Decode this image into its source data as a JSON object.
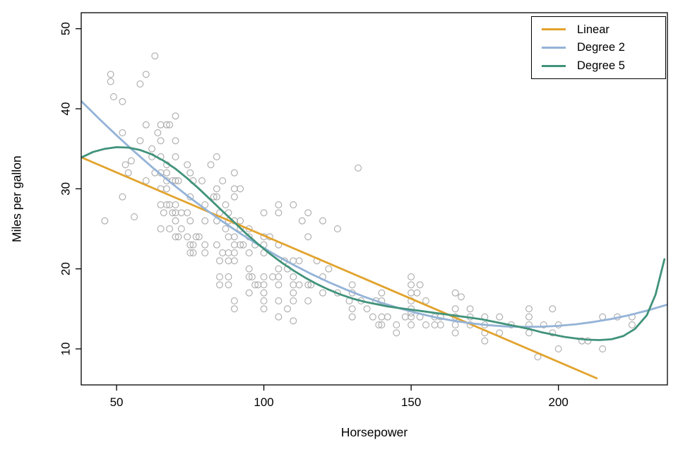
{
  "chart_data": {
    "type": "scatter",
    "title": "",
    "xlabel": "Horsepower",
    "ylabel": "Miles per gallon",
    "xlim": [
      38,
      237
    ],
    "ylim": [
      5.5,
      52
    ],
    "xticks": [
      50,
      100,
      150,
      200
    ],
    "yticks": [
      10,
      20,
      30,
      40,
      50
    ],
    "grid": "off",
    "point_color": "#ababab",
    "point_radius": 4.4,
    "points": [
      [
        46,
        26
      ],
      [
        48,
        43.4
      ],
      [
        48,
        44.3
      ],
      [
        49,
        41.5
      ],
      [
        52,
        40.9
      ],
      [
        52,
        37
      ],
      [
        52,
        29
      ],
      [
        53,
        33
      ],
      [
        54,
        32
      ],
      [
        55,
        33.5
      ],
      [
        56,
        26.5
      ],
      [
        58,
        43.1
      ],
      [
        58,
        36
      ],
      [
        60,
        44.3
      ],
      [
        60,
        38
      ],
      [
        60,
        31
      ],
      [
        62,
        35
      ],
      [
        62,
        34
      ],
      [
        63,
        32
      ],
      [
        63,
        46.6
      ],
      [
        64,
        37
      ],
      [
        65,
        38
      ],
      [
        65,
        36
      ],
      [
        65,
        34
      ],
      [
        65,
        32
      ],
      [
        65,
        30
      ],
      [
        65,
        28
      ],
      [
        65,
        25
      ],
      [
        66,
        27
      ],
      [
        67,
        38
      ],
      [
        67,
        33
      ],
      [
        67,
        32
      ],
      [
        67,
        31
      ],
      [
        67,
        30
      ],
      [
        67,
        28
      ],
      [
        68,
        38
      ],
      [
        68,
        28
      ],
      [
        68,
        25
      ],
      [
        69,
        31
      ],
      [
        69,
        27
      ],
      [
        70,
        39.1
      ],
      [
        70,
        36
      ],
      [
        70,
        34
      ],
      [
        70,
        31
      ],
      [
        70,
        28
      ],
      [
        70,
        27
      ],
      [
        70,
        26
      ],
      [
        70,
        24
      ],
      [
        71,
        31
      ],
      [
        71,
        24
      ],
      [
        72,
        27
      ],
      [
        72,
        25
      ],
      [
        74,
        33
      ],
      [
        74,
        27
      ],
      [
        74,
        24
      ],
      [
        75,
        32
      ],
      [
        75,
        29
      ],
      [
        75,
        26
      ],
      [
        75,
        23
      ],
      [
        75,
        22
      ],
      [
        76,
        31
      ],
      [
        76,
        23
      ],
      [
        76,
        22
      ],
      [
        77,
        24
      ],
      [
        78,
        24
      ],
      [
        79,
        31
      ],
      [
        80,
        28
      ],
      [
        80,
        26
      ],
      [
        80,
        23
      ],
      [
        80,
        22
      ],
      [
        82,
        33
      ],
      [
        83,
        29
      ],
      [
        84,
        34
      ],
      [
        84,
        30
      ],
      [
        84,
        29
      ],
      [
        84,
        26
      ],
      [
        84,
        23
      ],
      [
        85,
        27
      ],
      [
        85,
        21
      ],
      [
        85,
        19
      ],
      [
        85,
        18
      ],
      [
        86,
        31
      ],
      [
        86,
        22
      ],
      [
        87,
        28
      ],
      [
        87,
        25
      ],
      [
        88,
        27
      ],
      [
        88,
        26
      ],
      [
        88,
        24
      ],
      [
        88,
        22
      ],
      [
        88,
        21
      ],
      [
        88,
        19
      ],
      [
        88,
        18
      ],
      [
        90,
        32
      ],
      [
        90,
        30
      ],
      [
        90,
        29
      ],
      [
        90,
        26
      ],
      [
        90,
        24
      ],
      [
        90,
        23
      ],
      [
        90,
        22
      ],
      [
        90,
        21
      ],
      [
        90,
        16
      ],
      [
        90,
        15
      ],
      [
        92,
        30
      ],
      [
        92,
        26
      ],
      [
        92,
        25
      ],
      [
        92,
        23
      ],
      [
        93,
        23
      ],
      [
        95,
        25
      ],
      [
        95,
        24
      ],
      [
        95,
        22
      ],
      [
        95,
        20
      ],
      [
        95,
        19
      ],
      [
        95,
        17
      ],
      [
        96,
        19
      ],
      [
        97,
        23
      ],
      [
        97,
        18
      ],
      [
        98,
        18
      ],
      [
        100,
        27
      ],
      [
        100,
        24
      ],
      [
        100,
        23
      ],
      [
        100,
        22
      ],
      [
        100,
        19
      ],
      [
        100,
        18
      ],
      [
        100,
        17
      ],
      [
        100,
        16
      ],
      [
        100,
        15
      ],
      [
        102,
        24
      ],
      [
        103,
        19
      ],
      [
        105,
        28
      ],
      [
        105,
        27
      ],
      [
        105,
        23
      ],
      [
        105,
        20
      ],
      [
        105,
        19
      ],
      [
        105,
        18
      ],
      [
        105,
        16
      ],
      [
        105,
        14
      ],
      [
        107,
        21
      ],
      [
        108,
        20
      ],
      [
        108,
        15
      ],
      [
        110,
        28
      ],
      [
        110,
        21
      ],
      [
        110,
        19
      ],
      [
        110,
        18
      ],
      [
        110,
        17
      ],
      [
        110,
        16
      ],
      [
        110,
        13.5
      ],
      [
        112,
        21
      ],
      [
        112,
        18
      ],
      [
        113,
        26
      ],
      [
        115,
        27
      ],
      [
        115,
        24
      ],
      [
        115,
        18
      ],
      [
        115,
        16
      ],
      [
        116,
        18
      ],
      [
        118,
        21
      ],
      [
        120,
        26
      ],
      [
        120,
        19
      ],
      [
        120,
        17
      ],
      [
        122,
        20
      ],
      [
        125,
        25
      ],
      [
        125,
        17
      ],
      [
        129,
        16
      ],
      [
        130,
        18
      ],
      [
        130,
        17
      ],
      [
        130,
        15
      ],
      [
        130,
        14
      ],
      [
        132,
        32.6
      ],
      [
        133,
        16
      ],
      [
        135,
        15
      ],
      [
        137,
        14
      ],
      [
        138,
        16
      ],
      [
        139,
        13
      ],
      [
        140,
        17
      ],
      [
        140,
        16
      ],
      [
        140,
        14
      ],
      [
        140,
        13
      ],
      [
        142,
        14
      ],
      [
        145,
        13
      ],
      [
        145,
        12
      ],
      [
        148,
        14
      ],
      [
        150,
        19
      ],
      [
        150,
        18
      ],
      [
        150,
        17
      ],
      [
        150,
        16
      ],
      [
        150,
        15
      ],
      [
        150,
        14.5
      ],
      [
        150,
        14
      ],
      [
        150,
        13
      ],
      [
        152,
        17
      ],
      [
        153,
        18
      ],
      [
        153,
        14
      ],
      [
        155,
        16
      ],
      [
        155,
        13
      ],
      [
        158,
        14
      ],
      [
        158,
        13
      ],
      [
        160,
        14
      ],
      [
        160,
        13
      ],
      [
        165,
        17
      ],
      [
        165,
        15
      ],
      [
        165,
        14
      ],
      [
        165,
        13
      ],
      [
        165,
        12
      ],
      [
        167,
        16.5
      ],
      [
        170,
        15
      ],
      [
        170,
        14
      ],
      [
        170,
        13
      ],
      [
        175,
        14
      ],
      [
        175,
        13
      ],
      [
        175,
        12
      ],
      [
        175,
        11
      ],
      [
        180,
        14
      ],
      [
        180,
        12
      ],
      [
        184,
        13
      ],
      [
        190,
        15
      ],
      [
        190,
        14
      ],
      [
        190,
        13
      ],
      [
        190,
        12
      ],
      [
        193,
        9
      ],
      [
        195,
        13
      ],
      [
        198,
        15
      ],
      [
        198,
        12
      ],
      [
        200,
        13
      ],
      [
        200,
        10
      ],
      [
        208,
        11
      ],
      [
        210,
        11
      ],
      [
        215,
        14
      ],
      [
        215,
        10
      ],
      [
        220,
        14
      ],
      [
        225,
        14
      ],
      [
        225,
        13
      ]
    ],
    "series": [
      {
        "id": "linear",
        "name": "Linear",
        "color": "#E2A32D",
        "points": [
          [
            38,
            33.94
          ],
          [
            213,
            6.33
          ]
        ]
      },
      {
        "id": "degree-2",
        "name": "Degree 2",
        "color": "#94B3D7",
        "points": [
          [
            38,
            40.96
          ],
          [
            44,
            38.77
          ],
          [
            50,
            36.67
          ],
          [
            56,
            34.65
          ],
          [
            62,
            32.73
          ],
          [
            68,
            30.89
          ],
          [
            74,
            29.14
          ],
          [
            80,
            27.48
          ],
          [
            86,
            25.91
          ],
          [
            92,
            24.42
          ],
          [
            98,
            23.03
          ],
          [
            104,
            21.73
          ],
          [
            110,
            20.51
          ],
          [
            116,
            19.38
          ],
          [
            122,
            18.34
          ],
          [
            128,
            17.39
          ],
          [
            134,
            16.52
          ],
          [
            140,
            15.75
          ],
          [
            146,
            15.07
          ],
          [
            152,
            14.47
          ],
          [
            158,
            13.96
          ],
          [
            164,
            13.54
          ],
          [
            170,
            13.21
          ],
          [
            176,
            12.97
          ],
          [
            182,
            12.81
          ],
          [
            188,
            12.75
          ],
          [
            194,
            12.77
          ],
          [
            200,
            12.88
          ],
          [
            206,
            13.08
          ],
          [
            212,
            13.37
          ],
          [
            218,
            13.74
          ],
          [
            224,
            14.21
          ],
          [
            230,
            14.77
          ],
          [
            237,
            15.53
          ]
        ]
      },
      {
        "id": "degree-5",
        "name": "Degree 5",
        "color": "#41937B",
        "points": [
          [
            38,
            33.9
          ],
          [
            42,
            34.6
          ],
          [
            46,
            35.0
          ],
          [
            50,
            35.2
          ],
          [
            54,
            35.15
          ],
          [
            58,
            34.85
          ],
          [
            62,
            34.3
          ],
          [
            66,
            33.5
          ],
          [
            70,
            32.5
          ],
          [
            74,
            31.3
          ],
          [
            78,
            30.0
          ],
          [
            82,
            28.6
          ],
          [
            86,
            27.2
          ],
          [
            90,
            25.8
          ],
          [
            94,
            24.4
          ],
          [
            98,
            23.1
          ],
          [
            102,
            21.9
          ],
          [
            106,
            20.8
          ],
          [
            110,
            19.8
          ],
          [
            114,
            18.9
          ],
          [
            118,
            18.1
          ],
          [
            122,
            17.4
          ],
          [
            126,
            16.8
          ],
          [
            130,
            16.3
          ],
          [
            134,
            15.9
          ],
          [
            138,
            15.6
          ],
          [
            142,
            15.3
          ],
          [
            146,
            15.1
          ],
          [
            150,
            14.9
          ],
          [
            154,
            14.7
          ],
          [
            158,
            14.5
          ],
          [
            162,
            14.3
          ],
          [
            166,
            14.1
          ],
          [
            170,
            13.9
          ],
          [
            174,
            13.7
          ],
          [
            178,
            13.4
          ],
          [
            182,
            13.1
          ],
          [
            186,
            12.8
          ],
          [
            190,
            12.5
          ],
          [
            194,
            12.1
          ],
          [
            198,
            11.8
          ],
          [
            202,
            11.5
          ],
          [
            206,
            11.3
          ],
          [
            210,
            11.15
          ],
          [
            214,
            11.1
          ],
          [
            218,
            11.2
          ],
          [
            222,
            11.6
          ],
          [
            226,
            12.5
          ],
          [
            230,
            14.2
          ],
          [
            233,
            16.8
          ],
          [
            236,
            21.2
          ]
        ]
      }
    ],
    "legend": {
      "position": "top-right",
      "items": [
        {
          "label": "Linear",
          "color": "#E2A32D"
        },
        {
          "label": "Degree 2",
          "color": "#94B3D7"
        },
        {
          "label": "Degree 5",
          "color": "#41937B"
        }
      ]
    }
  }
}
